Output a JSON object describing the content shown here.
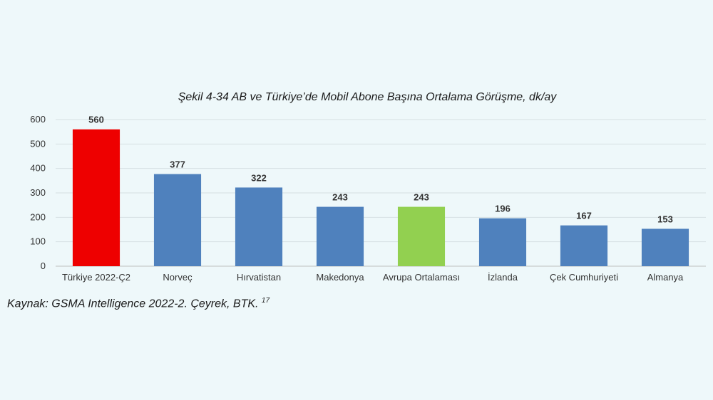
{
  "chart_data": {
    "type": "bar",
    "title": "Şekil 4-34 AB ve Türkiye’de Mobil Abone Başına Ortalama Görüşme, dk/ay",
    "categories": [
      "Türkiye 2022-Ç2",
      "Norveç",
      "Hırvatistan",
      "Makedonya",
      "Avrupa Ortalaması",
      "İzlanda",
      "Çek Cumhuriyeti",
      "Almanya"
    ],
    "values": [
      560,
      377,
      322,
      243,
      243,
      196,
      167,
      153
    ],
    "colors": [
      "#ee0000",
      "#4f81bd",
      "#4f81bd",
      "#4f81bd",
      "#92d050",
      "#4f81bd",
      "#4f81bd",
      "#4f81bd"
    ],
    "ylim": [
      0,
      600
    ],
    "yticks": [
      0,
      100,
      200,
      300,
      400,
      500,
      600
    ],
    "grid": true,
    "legend": "none",
    "xlabel": "",
    "ylabel": ""
  },
  "source": {
    "text": "Kaynak: GSMA Intelligence 2022-2. Çeyrek, BTK.",
    "footnote": "17"
  }
}
